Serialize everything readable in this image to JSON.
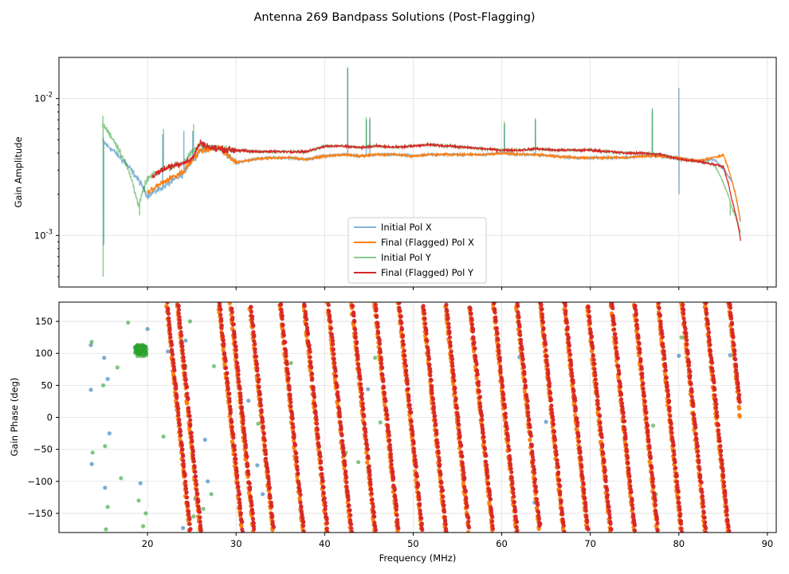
{
  "chart_data": [
    {
      "type": "line",
      "title": "Antenna 269 Bandpass Solutions (Post-Flagging)",
      "xlabel": "",
      "ylabel": "Gain Amplitude",
      "yscale": "log",
      "xlim": [
        10,
        91
      ],
      "ylim": [
        0.00042,
        0.02
      ],
      "ytick_labels": [
        "10^-3",
        "10^-2"
      ],
      "grid": true,
      "legend_position": "lower-center",
      "series": [
        {
          "name": "Initial Pol X",
          "color": "#1f77b4",
          "freq_mhz": [
            15,
            20,
            22,
            24,
            26,
            28,
            30,
            32,
            34,
            36,
            38,
            40,
            42,
            44,
            46,
            48,
            50,
            52,
            54,
            56,
            58,
            60,
            62,
            64,
            66,
            68,
            70,
            72,
            74,
            76,
            78,
            80,
            82,
            84,
            86,
            87
          ],
          "gain": [
            0.0048,
            0.00195,
            0.0023,
            0.0028,
            0.0042,
            0.0044,
            0.0034,
            0.0036,
            0.0037,
            0.0037,
            0.0036,
            0.0038,
            0.0039,
            0.0038,
            0.0039,
            0.0039,
            0.0038,
            0.0039,
            0.0039,
            0.0039,
            0.0039,
            0.004,
            0.0039,
            0.0039,
            0.0038,
            0.0037,
            0.0037,
            0.0037,
            0.0037,
            0.0038,
            0.0038,
            0.0037,
            0.0035,
            0.0036,
            0.0025,
            0.0012
          ],
          "spikes": [
            [
              15,
              0.0052
            ],
            [
              15.05,
              0.00085
            ],
            [
              21.7,
              0.0055
            ],
            [
              24.1,
              0.0058
            ],
            [
              25.1,
              0.0058
            ],
            [
              42.6,
              0.0165
            ],
            [
              44.7,
              0.007
            ],
            [
              45.1,
              0.007
            ],
            [
              60.3,
              0.0065
            ],
            [
              63.8,
              0.007
            ],
            [
              77,
              0.0085
            ],
            [
              80,
              0.012
            ],
            [
              80.02,
              0.002
            ]
          ]
        },
        {
          "name": "Final (Flagged) Pol X",
          "color": "#ff7f0e",
          "freq_mhz": [
            20,
            22,
            24,
            26,
            28,
            30,
            32,
            34,
            36,
            38,
            40,
            42,
            44,
            46,
            48,
            50,
            52,
            54,
            56,
            58,
            60,
            62,
            64,
            66,
            68,
            70,
            72,
            74,
            76,
            78,
            80,
            82,
            84,
            85,
            86,
            87
          ],
          "gain": [
            0.00205,
            0.0025,
            0.0029,
            0.0042,
            0.0044,
            0.0034,
            0.0036,
            0.0037,
            0.0037,
            0.0036,
            0.0038,
            0.0039,
            0.0038,
            0.0039,
            0.0039,
            0.0038,
            0.0039,
            0.0039,
            0.0039,
            0.0039,
            0.004,
            0.0039,
            0.0039,
            0.0038,
            0.0037,
            0.0037,
            0.0037,
            0.0037,
            0.0038,
            0.0038,
            0.0037,
            0.0035,
            0.0037,
            0.0039,
            0.0025,
            0.0012
          ]
        },
        {
          "name": "Initial Pol Y",
          "color": "#2ca02c",
          "freq_mhz": [
            14.9,
            19,
            20,
            22,
            24,
            26,
            28,
            30,
            32,
            34,
            36,
            38,
            40,
            42,
            44,
            46,
            48,
            50,
            52,
            54,
            56,
            58,
            60,
            62,
            64,
            66,
            68,
            70,
            72,
            74,
            76,
            78,
            80,
            82,
            84,
            86,
            87
          ],
          "gain": [
            0.0065,
            0.0016,
            0.0026,
            0.0031,
            0.0034,
            0.0046,
            0.0043,
            0.0042,
            0.0041,
            0.0041,
            0.0041,
            0.0041,
            0.0045,
            0.0045,
            0.0044,
            0.0045,
            0.0044,
            0.0045,
            0.0046,
            0.0045,
            0.0044,
            0.0043,
            0.0042,
            0.0042,
            0.0043,
            0.0042,
            0.0042,
            0.0042,
            0.0041,
            0.004,
            0.004,
            0.0039,
            0.0036,
            0.0035,
            0.0033,
            0.0016,
            0.00105
          ],
          "spikes": [
            [
              14.95,
              0.0075
            ],
            [
              14.98,
              0.0005
            ],
            [
              19.1,
              0.0014
            ],
            [
              21.8,
              0.006
            ],
            [
              25.2,
              0.0065
            ],
            [
              42.6,
              0.017
            ],
            [
              44.7,
              0.0073
            ],
            [
              45.1,
              0.0073
            ],
            [
              60.3,
              0.0068
            ],
            [
              63.8,
              0.0072
            ],
            [
              77,
              0.0082
            ],
            [
              85.8,
              0.0014
            ]
          ]
        },
        {
          "name": "Final (Flagged) Pol Y",
          "color": "#d62728",
          "freq_mhz": [
            20.5,
            22,
            24,
            25,
            26,
            27,
            28,
            30,
            32,
            34,
            36,
            38,
            40,
            42,
            44,
            46,
            48,
            50,
            52,
            54,
            56,
            58,
            60,
            62,
            64,
            66,
            68,
            70,
            72,
            74,
            76,
            78,
            80,
            82,
            84,
            85,
            86,
            87
          ],
          "gain": [
            0.0027,
            0.0031,
            0.0034,
            0.0036,
            0.0048,
            0.0044,
            0.0043,
            0.0042,
            0.0041,
            0.0041,
            0.0041,
            0.0041,
            0.0045,
            0.0045,
            0.0044,
            0.0045,
            0.0044,
            0.0045,
            0.0046,
            0.0045,
            0.0044,
            0.0043,
            0.0042,
            0.0042,
            0.0043,
            0.0042,
            0.0042,
            0.0042,
            0.0041,
            0.004,
            0.004,
            0.0039,
            0.0036,
            0.0035,
            0.0033,
            0.0032,
            0.0018,
            0.0009
          ]
        }
      ]
    },
    {
      "type": "scatter",
      "title": "",
      "xlabel": "Frequency (MHz)",
      "ylabel": "Gain Phase (deg)",
      "xlim": [
        10,
        91
      ],
      "ylim": [
        -180,
        180
      ],
      "xticks": [
        20,
        30,
        40,
        50,
        60,
        70,
        80,
        90
      ],
      "yticks": [
        -150,
        -100,
        -50,
        0,
        50,
        100,
        150
      ],
      "grid": true,
      "phase_slope_deg_per_mhz": -136,
      "wrap_crossings_mhz": [
        22.1,
        23.3,
        28.0,
        29.3,
        31.5,
        34.9,
        37.6,
        40.3,
        43.0,
        45.6,
        48.3,
        51.0,
        53.6,
        56.3,
        59.0,
        61.6,
        64.3,
        67.0,
        69.6,
        72.3,
        74.9,
        77.6,
        80.3,
        82.9,
        85.6
      ],
      "series": [
        {
          "name": "Initial Pol X",
          "color": "#1f77b4",
          "scattered_points": [
            [
              13.6,
              113
            ],
            [
              13.6,
              43
            ],
            [
              13.7,
              -73
            ],
            [
              15.1,
              93
            ],
            [
              15.5,
              60
            ],
            [
              15.7,
              -25
            ],
            [
              15.2,
              -110
            ],
            [
              19.2,
              -103
            ],
            [
              20.0,
              138
            ],
            [
              22.3,
              103
            ],
            [
              24.0,
              -173
            ],
            [
              24.3,
              120
            ],
            [
              25.4,
              -127
            ],
            [
              26.5,
              -35
            ],
            [
              26.8,
              -100
            ],
            [
              31.4,
              26
            ],
            [
              32.4,
              -75
            ],
            [
              33.0,
              -120
            ],
            [
              44.9,
              44
            ],
            [
              62.0,
              94
            ],
            [
              63.7,
              -133
            ],
            [
              65.0,
              -7
            ],
            [
              80.0,
              96
            ],
            [
              85.8,
              97
            ]
          ]
        },
        {
          "name": "Final (Flagged) Pol X",
          "color": "#ff7f0e",
          "start_mhz": 20.5,
          "end_mhz": 86.9
        },
        {
          "name": "Initial Pol Y",
          "color": "#2ca02c",
          "scattered_points": [
            [
              13.7,
              118
            ],
            [
              13.8,
              -55
            ],
            [
              15.0,
              50
            ],
            [
              15.2,
              -45
            ],
            [
              15.3,
              -175
            ],
            [
              15.5,
              -140
            ],
            [
              16.6,
              78
            ],
            [
              17.0,
              -95
            ],
            [
              17.8,
              148
            ],
            [
              19.0,
              -130
            ],
            [
              19.5,
              -170
            ],
            [
              19.8,
              -150
            ],
            [
              21.8,
              -30
            ],
            [
              22.5,
              143
            ],
            [
              24.3,
              80
            ],
            [
              24.8,
              150
            ],
            [
              25.2,
              -155
            ],
            [
              26.3,
              -143
            ],
            [
              27.2,
              -120
            ],
            [
              27.5,
              80
            ],
            [
              29.0,
              55
            ],
            [
              30.1,
              -85
            ],
            [
              32.5,
              -10
            ],
            [
              36.2,
              85
            ],
            [
              42.4,
              -55
            ],
            [
              43.8,
              -70
            ],
            [
              45.7,
              93
            ],
            [
              46.3,
              -8
            ],
            [
              77.1,
              -13
            ],
            [
              77.4,
              -120
            ],
            [
              80.3,
              125
            ]
          ],
          "cluster": {
            "freq_mhz": [
              18.6,
              19.9
            ],
            "phase_deg": [
              95,
              113
            ]
          }
        },
        {
          "name": "Final (Flagged) Pol Y",
          "color": "#d62728",
          "start_mhz": 20.5,
          "end_mhz": 86.9
        }
      ]
    }
  ]
}
